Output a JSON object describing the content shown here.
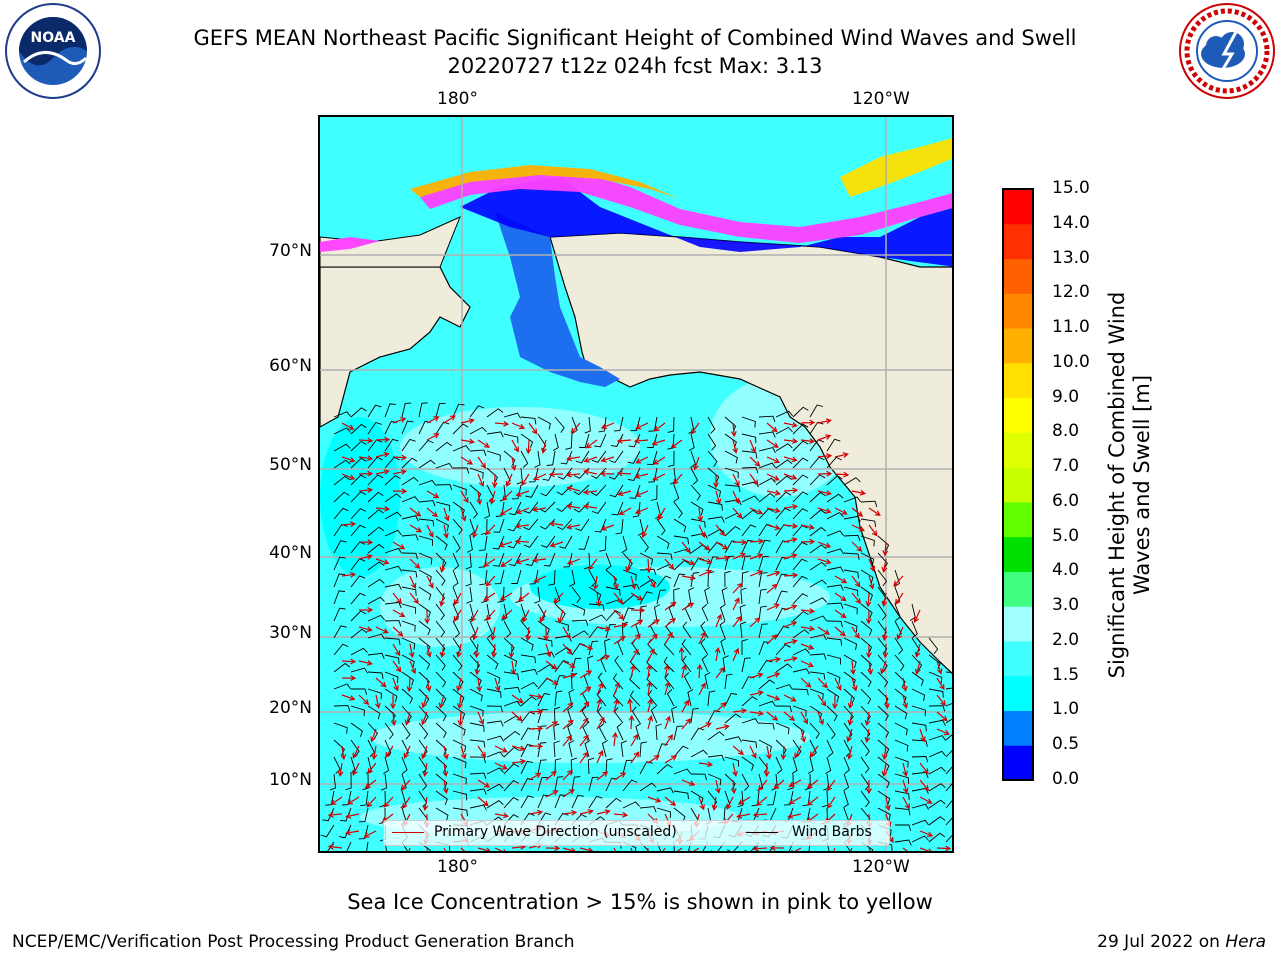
{
  "header": {
    "title_line1": "GEFS MEAN Northeast Pacific Significant Height of Combined Wind Waves and Swell",
    "title_line2": "20220727 t12z 024h fcst   Max: 3.13"
  },
  "logos": {
    "left": "NOAA",
    "right": "NATIONAL WEATHER SERVICE"
  },
  "map": {
    "lon_labels": [
      "180°",
      "120°W"
    ],
    "lat_labels": [
      "70°N",
      "60°N",
      "50°N",
      "40°N",
      "30°N",
      "20°N",
      "10°N"
    ],
    "colors": {
      "land": "#efecdc",
      "coastline": "#000000",
      "grid": "#b0b0b0"
    }
  },
  "legend": {
    "wave_label": "Primary Wave Direction (unscaled)",
    "wind_label": "Wind Barbs",
    "wave_color": "#d40000",
    "wind_color": "#000000"
  },
  "colorbar": {
    "title": "Significant Height of Combined Wind Waves and Swell [m]",
    "ticks": [
      "15.0",
      "14.0",
      "13.0",
      "12.0",
      "11.0",
      "10.0",
      "9.0",
      "8.0",
      "7.0",
      "6.0",
      "5.0",
      "4.0",
      "3.0",
      "2.0",
      "1.5",
      "1.0",
      "0.5",
      "0.0"
    ],
    "colors_bottom_to_top": [
      "#0000ff",
      "#0080ff",
      "#00ffff",
      "#40ffff",
      "#a0ffff",
      "#40ff80",
      "#00e000",
      "#60ff00",
      "#c8ff00",
      "#e0ff00",
      "#ffff00",
      "#ffe000",
      "#ffb000",
      "#ff8800",
      "#ff6000",
      "#ff3000",
      "#ff0000"
    ]
  },
  "footnote": "Sea Ice Concentration > 15% is shown in pink to yellow",
  "credits": {
    "left": "NCEP/EMC/Verification Post Processing Product Generation Branch",
    "right_date": "29 Jul 2022 on",
    "right_machine": "Hera"
  }
}
